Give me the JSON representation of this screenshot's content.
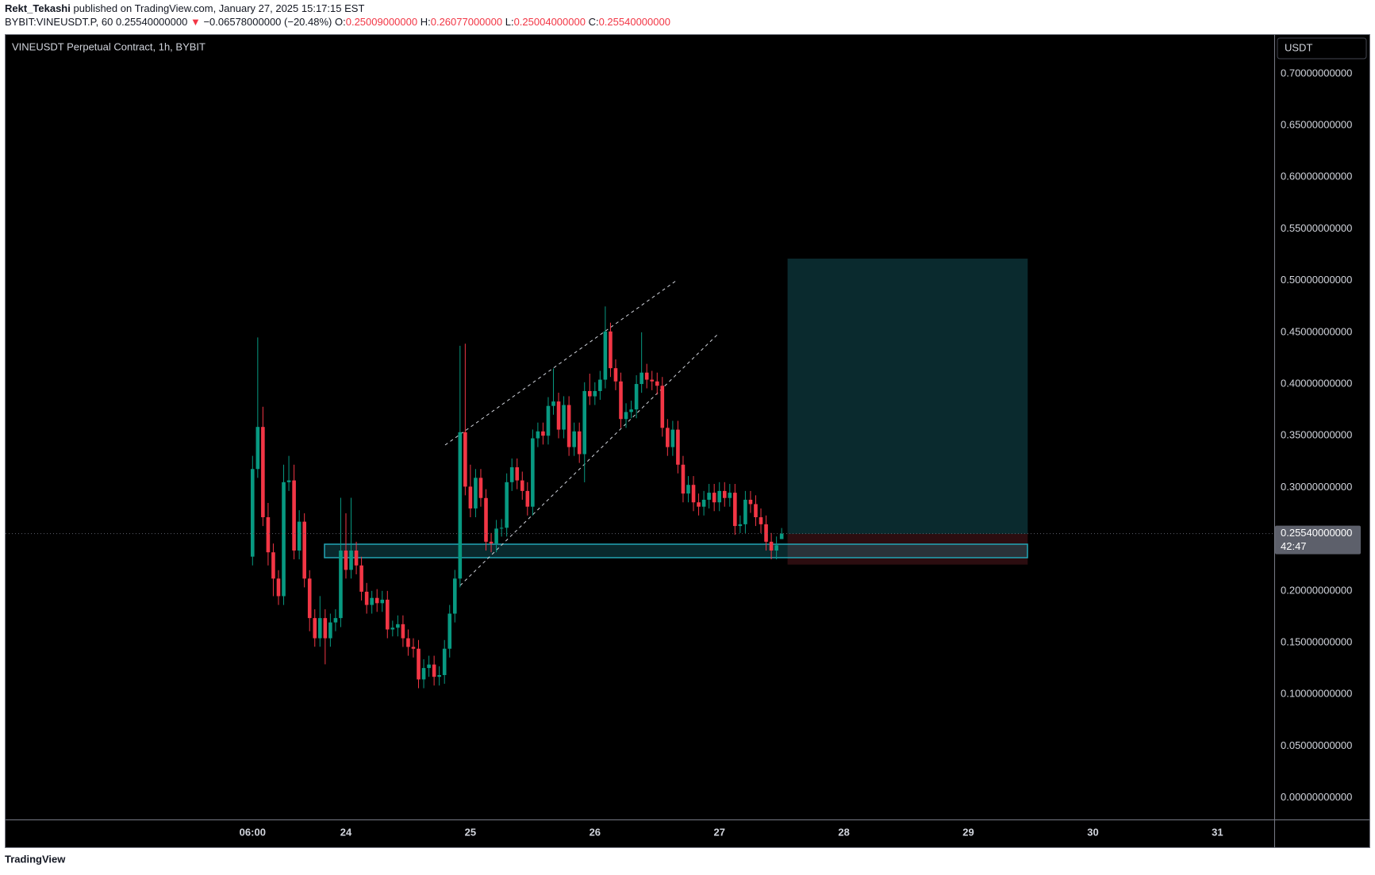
{
  "header": {
    "author": "Rekt_Tekashi",
    "published": "published on TradingView.com, January 27, 2025 15:17:15 EST",
    "symbol": "BYBIT:VINEUSDT.P, 60",
    "last": "0.25540000000",
    "arrow": "▼",
    "change": "−0.06578000000 (−20.48%)",
    "o_label": "O:",
    "o": "0.25009000000",
    "h_label": "H:",
    "h": "0.26077000000",
    "l_label": "L:",
    "l": "0.25004000000",
    "c_label": "C:",
    "c": "0.25540000000"
  },
  "footer": {
    "logo": "TradingView"
  },
  "chart_data": {
    "type": "candlestick",
    "title": "VINEUSDT Perpetual Contract, 1h, BYBIT",
    "currency": "USDT",
    "last_price_label": "0.25540000000",
    "countdown": "42:47",
    "up_color": "#089981",
    "down_color": "#f23645",
    "grid": false,
    "ylim": [
      -0.021,
      0.7375
    ],
    "yticks": [
      {
        "value": 0,
        "label": "0.00000000000"
      },
      {
        "value": 0.05,
        "label": "0.05000000000"
      },
      {
        "value": 0.1,
        "label": "0.10000000000"
      },
      {
        "value": 0.15,
        "label": "0.15000000000"
      },
      {
        "value": 0.2,
        "label": "0.20000000000"
      },
      {
        "value": 0.25,
        "label": "0.25000000000"
      },
      {
        "value": 0.3,
        "label": "0.30000000000"
      },
      {
        "value": 0.35,
        "label": "0.35000000000"
      },
      {
        "value": 0.4,
        "label": "0.40000000000"
      },
      {
        "value": 0.45,
        "label": "0.45000000000"
      },
      {
        "value": 0.5,
        "label": "0.50000000000"
      },
      {
        "value": 0.55,
        "label": "0.55000000000"
      },
      {
        "value": 0.6,
        "label": "0.60000000000"
      },
      {
        "value": 0.65,
        "label": "0.65000000000"
      },
      {
        "value": 0.7,
        "label": "0.70000000000"
      }
    ],
    "xticks": [
      {
        "value": "23 06:00",
        "label": "06:00"
      },
      {
        "value": "24 00:00",
        "label": "24"
      },
      {
        "value": "25 00:00",
        "label": "25"
      },
      {
        "value": "26 00:00",
        "label": "26"
      },
      {
        "value": "27 00:00",
        "label": "27"
      },
      {
        "value": "28 00:00",
        "label": "28"
      },
      {
        "value": "29 00:00",
        "label": "29"
      },
      {
        "value": "30 00:00",
        "label": "30"
      },
      {
        "value": "31 00:00",
        "label": "31"
      }
    ],
    "x": [
      "23 06:00",
      "23 07:00",
      "23 08:00",
      "23 09:00",
      "23 10:00",
      "23 11:00",
      "23 12:00",
      "23 13:00",
      "23 14:00",
      "23 15:00",
      "23 16:00",
      "23 17:00",
      "23 18:00",
      "23 19:00",
      "23 20:00",
      "23 21:00",
      "23 22:00",
      "23 23:00",
      "24 00:00",
      "24 01:00",
      "24 02:00",
      "24 03:00",
      "24 04:00",
      "24 05:00",
      "24 06:00",
      "24 07:00",
      "24 08:00",
      "24 09:00",
      "24 10:00",
      "24 11:00",
      "24 12:00",
      "24 13:00",
      "24 14:00",
      "24 15:00",
      "24 16:00",
      "24 17:00",
      "24 18:00",
      "24 19:00",
      "24 20:00",
      "24 21:00",
      "24 22:00",
      "24 23:00",
      "25 00:00",
      "25 01:00",
      "25 02:00",
      "25 03:00",
      "25 04:00",
      "25 05:00",
      "25 06:00",
      "25 07:00",
      "25 08:00",
      "25 09:00",
      "25 10:00",
      "25 11:00",
      "25 12:00",
      "25 13:00",
      "25 14:00",
      "25 15:00",
      "25 16:00",
      "25 17:00",
      "25 18:00",
      "25 19:00",
      "25 20:00",
      "25 21:00",
      "25 22:00",
      "25 23:00",
      "26 00:00",
      "26 01:00",
      "26 02:00",
      "26 03:00",
      "26 04:00",
      "26 05:00",
      "26 06:00",
      "26 07:00",
      "26 08:00",
      "26 09:00",
      "26 10:00",
      "26 11:00",
      "26 12:00",
      "26 13:00",
      "26 14:00",
      "26 15:00",
      "26 16:00",
      "26 17:00",
      "26 18:00",
      "26 19:00",
      "26 20:00",
      "26 21:00",
      "26 22:00",
      "26 23:00",
      "27 00:00",
      "27 01:00",
      "27 02:00",
      "27 03:00",
      "27 04:00",
      "27 05:00",
      "27 06:00",
      "27 07:00",
      "27 08:00",
      "27 09:00",
      "27 10:00",
      "27 11:00",
      "27 12:00"
    ],
    "ohlc": [
      [
        0.2331,
        0.3305,
        0.2246,
        0.3178
      ],
      [
        0.3178,
        0.445,
        0.3093,
        0.3585
      ],
      [
        0.3585,
        0.378,
        0.2627,
        0.2712
      ],
      [
        0.2712,
        0.285,
        0.2246,
        0.2373
      ],
      [
        0.2373,
        0.2458,
        0.1949,
        0.2119
      ],
      [
        0.2119,
        0.22,
        0.1864,
        0.1949
      ],
      [
        0.1949,
        0.322,
        0.1864,
        0.3051
      ],
      [
        0.3051,
        0.3305,
        0.2966,
        0.3068
      ],
      [
        0.3068,
        0.322,
        0.2305,
        0.239
      ],
      [
        0.239,
        0.278,
        0.2305,
        0.2669
      ],
      [
        0.2669,
        0.275,
        0.2034,
        0.2119
      ],
      [
        0.2119,
        0.22,
        0.161,
        0.1737
      ],
      [
        0.1737,
        0.1822,
        0.146,
        0.1542
      ],
      [
        0.1542,
        0.195,
        0.146,
        0.1737
      ],
      [
        0.1737,
        0.1822,
        0.129,
        0.1542
      ],
      [
        0.1542,
        0.178,
        0.146,
        0.1695
      ],
      [
        0.1695,
        0.1822,
        0.161,
        0.1737
      ],
      [
        0.1737,
        0.29,
        0.165,
        0.239
      ],
      [
        0.239,
        0.275,
        0.2119,
        0.2203
      ],
      [
        0.2203,
        0.29,
        0.2119,
        0.239
      ],
      [
        0.239,
        0.2475,
        0.216,
        0.2246
      ],
      [
        0.2246,
        0.233,
        0.1907,
        0.1992
      ],
      [
        0.1992,
        0.2077,
        0.178,
        0.1864
      ],
      [
        0.1864,
        0.2,
        0.178,
        0.1932
      ],
      [
        0.1932,
        0.2017,
        0.1797,
        0.1881
      ],
      [
        0.1881,
        0.2,
        0.1797,
        0.1915
      ],
      [
        0.1915,
        0.2,
        0.1542,
        0.1627
      ],
      [
        0.1627,
        0.1712,
        0.156,
        0.1644
      ],
      [
        0.1644,
        0.1763,
        0.156,
        0.1678
      ],
      [
        0.1678,
        0.1763,
        0.1458,
        0.1542
      ],
      [
        0.1542,
        0.1627,
        0.1373,
        0.1458
      ],
      [
        0.1458,
        0.1542,
        0.1356,
        0.1441
      ],
      [
        0.1441,
        0.1525,
        0.1059,
        0.1144
      ],
      [
        0.1144,
        0.1339,
        0.1059,
        0.1254
      ],
      [
        0.1254,
        0.1373,
        0.1169,
        0.1288
      ],
      [
        0.1288,
        0.1373,
        0.1085,
        0.1169
      ],
      [
        0.1169,
        0.1271,
        0.1085,
        0.1186
      ],
      [
        0.1186,
        0.1525,
        0.1102,
        0.1441
      ],
      [
        0.1441,
        0.1864,
        0.1356,
        0.178
      ],
      [
        0.178,
        0.2203,
        0.1695,
        0.2119
      ],
      [
        0.2119,
        0.437,
        0.2034,
        0.3534
      ],
      [
        0.3534,
        0.439,
        0.2924,
        0.3008
      ],
      [
        0.3008,
        0.322,
        0.2712,
        0.2797
      ],
      [
        0.2797,
        0.3178,
        0.2712,
        0.3093
      ],
      [
        0.3093,
        0.3178,
        0.2814,
        0.2898
      ],
      [
        0.2898,
        0.2983,
        0.239,
        0.2475
      ],
      [
        0.2475,
        0.256,
        0.2373,
        0.2458
      ],
      [
        0.2458,
        0.2686,
        0.2373,
        0.2602
      ],
      [
        0.2602,
        0.2695,
        0.2525,
        0.261
      ],
      [
        0.261,
        0.3136,
        0.2525,
        0.3051
      ],
      [
        0.3051,
        0.328,
        0.2966,
        0.3195
      ],
      [
        0.3195,
        0.328,
        0.2983,
        0.3068
      ],
      [
        0.3068,
        0.3153,
        0.2881,
        0.2966
      ],
      [
        0.2966,
        0.3051,
        0.2729,
        0.2814
      ],
      [
        0.2814,
        0.356,
        0.2729,
        0.3475
      ],
      [
        0.3475,
        0.3627,
        0.339,
        0.3542
      ],
      [
        0.3542,
        0.3627,
        0.3415,
        0.35
      ],
      [
        0.35,
        0.3873,
        0.3415,
        0.3788
      ],
      [
        0.3788,
        0.415,
        0.3703,
        0.3831
      ],
      [
        0.3831,
        0.3916,
        0.3475,
        0.3559
      ],
      [
        0.3559,
        0.3882,
        0.3475,
        0.3797
      ],
      [
        0.3797,
        0.3882,
        0.3305,
        0.339
      ],
      [
        0.339,
        0.3627,
        0.3305,
        0.3542
      ],
      [
        0.3542,
        0.3627,
        0.3237,
        0.3322
      ],
      [
        0.3322,
        0.4017,
        0.305,
        0.3932
      ],
      [
        0.3932,
        0.41,
        0.3797,
        0.3881
      ],
      [
        0.3881,
        0.4017,
        0.3797,
        0.3932
      ],
      [
        0.3932,
        0.4127,
        0.3847,
        0.4042
      ],
      [
        0.4042,
        0.475,
        0.3958,
        0.4508
      ],
      [
        0.4508,
        0.4593,
        0.4068,
        0.4153
      ],
      [
        0.4153,
        0.4238,
        0.394,
        0.4025
      ],
      [
        0.4025,
        0.411,
        0.3576,
        0.3661
      ],
      [
        0.3661,
        0.3814,
        0.3576,
        0.3729
      ],
      [
        0.3729,
        0.3839,
        0.3669,
        0.3754
      ],
      [
        0.3754,
        0.4085,
        0.3669,
        0.4
      ],
      [
        0.4,
        0.45,
        0.3915,
        0.411
      ],
      [
        0.411,
        0.4195,
        0.3958,
        0.4042
      ],
      [
        0.4042,
        0.4127,
        0.394,
        0.4025
      ],
      [
        0.4025,
        0.411,
        0.3898,
        0.3983
      ],
      [
        0.3983,
        0.4068,
        0.3491,
        0.3576
      ],
      [
        0.3576,
        0.3661,
        0.3305,
        0.339
      ],
      [
        0.339,
        0.3644,
        0.3305,
        0.3559
      ],
      [
        0.3559,
        0.3644,
        0.3136,
        0.322
      ],
      [
        0.322,
        0.3305,
        0.2856,
        0.2941
      ],
      [
        0.2941,
        0.311,
        0.2856,
        0.3025
      ],
      [
        0.3025,
        0.311,
        0.2771,
        0.2856
      ],
      [
        0.2856,
        0.2941,
        0.2729,
        0.2814
      ],
      [
        0.2814,
        0.2966,
        0.2729,
        0.2881
      ],
      [
        0.2881,
        0.3034,
        0.2797,
        0.2949
      ],
      [
        0.2949,
        0.3034,
        0.2771,
        0.2856
      ],
      [
        0.2856,
        0.3051,
        0.2771,
        0.2966
      ],
      [
        0.2966,
        0.3051,
        0.2814,
        0.2898
      ],
      [
        0.2898,
        0.3034,
        0.2814,
        0.2949
      ],
      [
        0.2949,
        0.3034,
        0.2542,
        0.2627
      ],
      [
        0.2627,
        0.2729,
        0.2559,
        0.2644
      ],
      [
        0.2644,
        0.2966,
        0.2559,
        0.2881
      ],
      [
        0.2881,
        0.2966,
        0.2754,
        0.2839
      ],
      [
        0.2839,
        0.2924,
        0.2627,
        0.2712
      ],
      [
        0.2712,
        0.2797,
        0.2559,
        0.2644
      ],
      [
        0.2644,
        0.2729,
        0.239,
        0.2475
      ],
      [
        0.2475,
        0.256,
        0.2305,
        0.239
      ],
      [
        0.239,
        0.2526,
        0.2305,
        0.2441
      ],
      [
        0.25009,
        0.26077,
        0.25004,
        0.2554
      ]
    ]
  }
}
